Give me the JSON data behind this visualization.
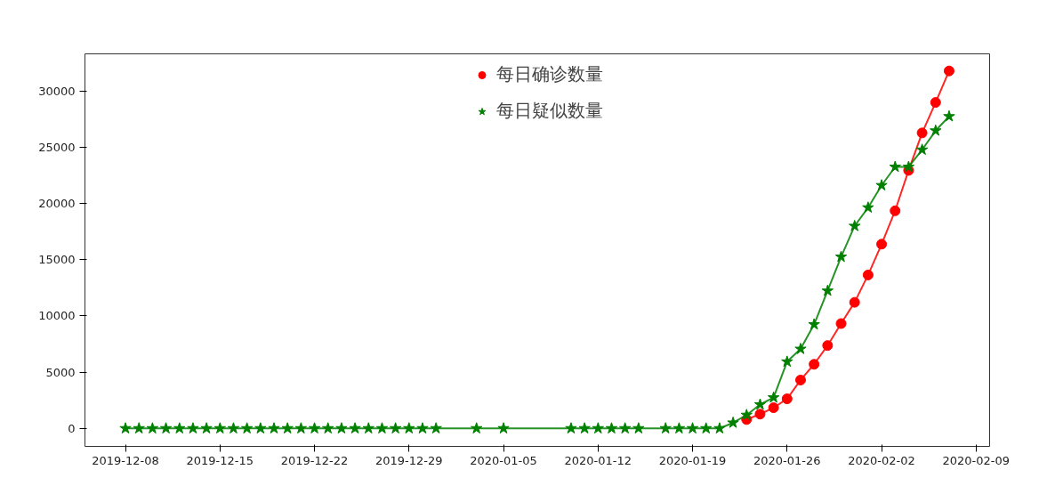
{
  "chart_data": {
    "type": "line",
    "xlim": [
      "2019-12-05",
      "2020-02-10"
    ],
    "ylim": [
      -1600,
      33300
    ],
    "xticks": [
      {
        "value": "2019-12-08",
        "label": "2019-12-08"
      },
      {
        "value": "2019-12-15",
        "label": "2019-12-15"
      },
      {
        "value": "2019-12-22",
        "label": "2019-12-22"
      },
      {
        "value": "2019-12-29",
        "label": "2019-12-29"
      },
      {
        "value": "2020-01-05",
        "label": "2020-01-05"
      },
      {
        "value": "2020-01-12",
        "label": "2020-01-12"
      },
      {
        "value": "2020-01-19",
        "label": "2020-01-19"
      },
      {
        "value": "2020-01-26",
        "label": "2020-01-26"
      },
      {
        "value": "2020-02-02",
        "label": "2020-02-02"
      },
      {
        "value": "2020-02-09",
        "label": "2020-02-09"
      }
    ],
    "yticks": [
      0,
      5000,
      10000,
      15000,
      20000,
      25000,
      30000
    ],
    "grid": false,
    "legend": "top",
    "line_style": "solid",
    "series": [
      {
        "name": "每日确诊数量",
        "color": "#ff0000",
        "marker": "circle",
        "x": [
          "2020-01-23",
          "2020-01-24",
          "2020-01-25",
          "2020-01-26",
          "2020-01-27",
          "2020-01-28",
          "2020-01-29",
          "2020-01-30",
          "2020-01-31",
          "2020-02-01",
          "2020-02-02",
          "2020-02-03",
          "2020-02-04",
          "2020-02-05",
          "2020-02-06",
          "2020-02-07"
        ],
        "values": [
          790,
          1270,
          1840,
          2630,
          4300,
          5700,
          7370,
          9320,
          11210,
          13640,
          16380,
          19350,
          22940,
          26270,
          28980,
          31780
        ]
      },
      {
        "name": "每日疑似数量",
        "color": "#008000",
        "marker": "star",
        "x": [
          "2019-12-08",
          "2019-12-09",
          "2019-12-10",
          "2019-12-11",
          "2019-12-12",
          "2019-12-13",
          "2019-12-14",
          "2019-12-15",
          "2019-12-16",
          "2019-12-17",
          "2019-12-18",
          "2019-12-19",
          "2019-12-20",
          "2019-12-21",
          "2019-12-22",
          "2019-12-23",
          "2019-12-24",
          "2019-12-25",
          "2019-12-26",
          "2019-12-27",
          "2019-12-28",
          "2019-12-29",
          "2019-12-30",
          "2019-12-31",
          "2020-01-03",
          "2020-01-05",
          "2020-01-10",
          "2020-01-11",
          "2020-01-12",
          "2020-01-13",
          "2020-01-14",
          "2020-01-15",
          "2020-01-17",
          "2020-01-18",
          "2020-01-19",
          "2020-01-20",
          "2020-01-21",
          "2020-01-22",
          "2020-01-23",
          "2020-01-24",
          "2020-01-25",
          "2020-01-26",
          "2020-01-27",
          "2020-01-28",
          "2020-01-29",
          "2020-01-30",
          "2020-01-31",
          "2020-02-01",
          "2020-02-02",
          "2020-02-03",
          "2020-02-04",
          "2020-02-05",
          "2020-02-06",
          "2020-02-07"
        ],
        "values": [
          0,
          0,
          0,
          0,
          0,
          0,
          0,
          0,
          0,
          0,
          0,
          0,
          0,
          0,
          0,
          0,
          0,
          0,
          0,
          0,
          0,
          0,
          0,
          0,
          0,
          0,
          0,
          0,
          0,
          0,
          0,
          0,
          0,
          0,
          0,
          0,
          0,
          500,
          1190,
          2120,
          2740,
          5930,
          7060,
          9240,
          12230,
          15250,
          17990,
          19630,
          21610,
          23250,
          23250,
          24770,
          26470,
          27740
        ]
      }
    ]
  }
}
